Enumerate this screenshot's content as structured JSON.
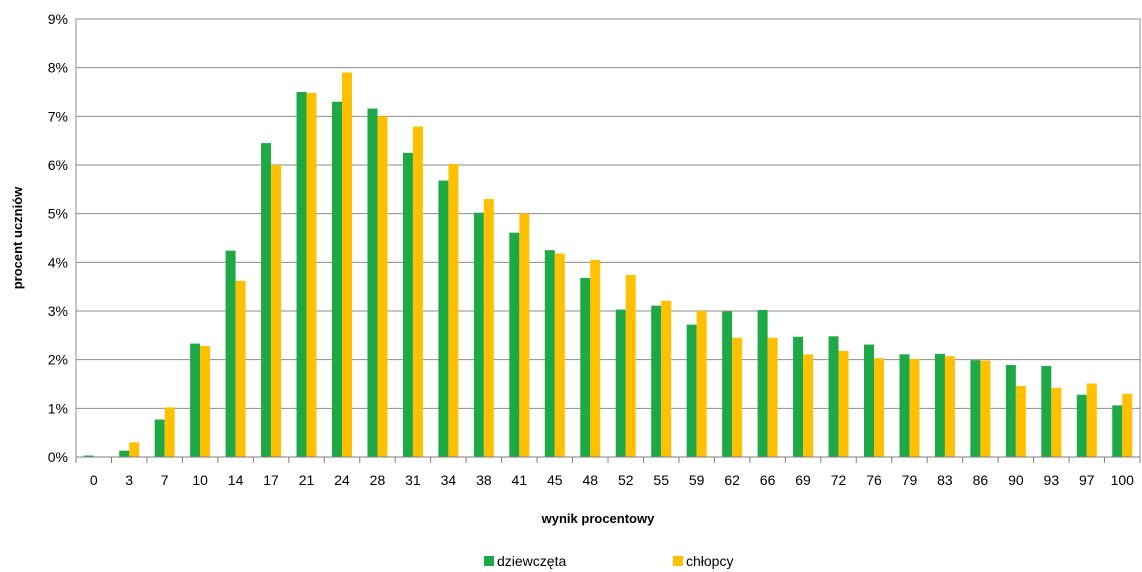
{
  "chart_data": {
    "type": "bar",
    "xlabel": "wynik procentowy",
    "ylabel": "procent  uczniów",
    "ylim": [
      0,
      9
    ],
    "y_ticks": [
      "0%",
      "1%",
      "2%",
      "3%",
      "4%",
      "5%",
      "6%",
      "7%",
      "8%",
      "9%"
    ],
    "grid": true,
    "legend_position": "bottom",
    "categories": [
      "0",
      "3",
      "7",
      "10",
      "14",
      "17",
      "21",
      "24",
      "28",
      "31",
      "34",
      "38",
      "41",
      "45",
      "48",
      "52",
      "55",
      "59",
      "62",
      "66",
      "69",
      "72",
      "76",
      "79",
      "83",
      "86",
      "90",
      "93",
      "97",
      "100"
    ],
    "series": [
      {
        "name": "dziewczęta",
        "color": "#1fa846",
        "values": [
          0.03,
          0.13,
          0.77,
          2.33,
          4.24,
          6.45,
          7.5,
          7.3,
          7.16,
          6.25,
          5.68,
          5.02,
          4.61,
          4.25,
          3.68,
          3.03,
          3.11,
          2.72,
          2.99,
          3.02,
          2.47,
          2.48,
          2.31,
          2.11,
          2.12,
          1.99,
          1.89,
          1.87,
          1.28,
          1.06
        ]
      },
      {
        "name": "chłopcy",
        "color": "#ffc000",
        "values": [
          0.0,
          0.3,
          1.02,
          2.28,
          3.62,
          6.0,
          7.48,
          7.9,
          7.0,
          6.79,
          6.02,
          5.3,
          5.0,
          4.18,
          4.05,
          3.74,
          3.21,
          3.0,
          2.45,
          2.45,
          2.11,
          2.18,
          2.03,
          2.01,
          2.07,
          1.98,
          1.46,
          1.42,
          1.51,
          1.3
        ]
      }
    ]
  }
}
